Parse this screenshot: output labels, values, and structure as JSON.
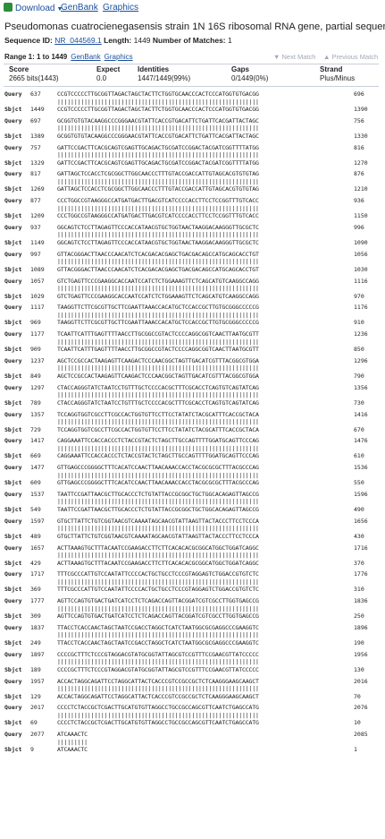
{
  "toolbar": {
    "download_label": "Download",
    "genbank_label": "GenBank",
    "graphics_label": "Graphics"
  },
  "title": "Pseudomonas cuatrocienegasensis strain 1N 16S ribosomal RNA gene, partial sequence",
  "meta": {
    "sequence_id_label": "Sequence ID:",
    "sequence_id": "NR_044569.1",
    "length_label": "Length:",
    "length": "1449",
    "matches_label": "Number of Matches:",
    "matches": "1"
  },
  "range": {
    "label": "Range 1: 1 to 1449",
    "genbank_label": "GenBank",
    "graphics_label": "Graphics",
    "next_match": "▼ Next Match",
    "prev_match": "▲ Previous Match"
  },
  "stats": {
    "score_h": "Score",
    "score_v": "2665 bits(1443)",
    "expect_h": "Expect",
    "expect_v": "0.0",
    "identities_h": "Identities",
    "identities_v": "1447/1449(99%)",
    "gaps_h": "Gaps",
    "gaps_v": "0/1449(0%)",
    "strand_h": "Strand",
    "strand_v": "Plus/Minus"
  },
  "alignment": [
    {
      "qs": "637",
      "q": "CCGTCCCCCTTGCGGTTAGACTAGCTACTTCTGGTGCAACCCACTCCCATGGTGTGACGG",
      "qe": "696",
      "ss": "1449",
      "s": "CCGTCCCCCTTGCGGTTAGACTAGCTACTTCTGGTGCAACCCACTCCCATGGTGTGACGG",
      "se": "1390"
    },
    {
      "qs": "697",
      "q": "GCGGTGTGTACAAGGCCCGGGAACGTATTCACCGTGACATTCTGATTCACGATTACTAGC",
      "qe": "756",
      "ss": "1389",
      "s": "GCGGTGTGTACAAGGCCCGGGAACGTATTCACCGTGACATTCTGATTCACGATTACTAGC",
      "se": "1330"
    },
    {
      "qs": "757",
      "q": "GATTCCGACTTCACGCAGTCGAGTTGCAGACTGCGATCCGGACTACGATCGGTTTTATGG",
      "qe": "816",
      "ss": "1329",
      "s": "GATTCCGACTTCACGCAGTCGAGTTGCAGACTGCGATCCGGACTACGATCGGTTTTATGG",
      "se": "1270"
    },
    {
      "qs": "817",
      "q": "GATTAGCTCCACCTCGCGGCTTGGCAACCCTTTGTACCGACCATTGTAGCACGTGTGTAG",
      "qe": "876",
      "ss": "1269",
      "s": "GATTAGCTCCACCTCGCGGCTTGGCAACCCTTTGTACCGACCATTGTAGCACGTGTGTAG",
      "se": "1210"
    },
    {
      "qs": "877",
      "q": "CCCTGGCCGTAAGGGCCATGATGACTTGACGTCATCCCCACCTTCCTCCGGTTTGTCACC",
      "qe": "936",
      "ss": "1209",
      "s": "CCCTGGCCGTAAGGGCCATGATGACTTGACGTCATCCCCACCTTCCTCCGGTTTGTCACC",
      "se": "1150"
    },
    {
      "qs": "937",
      "q": "GGCAGTCTCCTTAGAGTTCCCACCATAACGTGCTGGTAACTAAGGACAAGGGTTGCGCTC",
      "qe": "996",
      "ss": "1149",
      "s": "GGCAGTCTCCTTAGAGTTCCCACCATAACGTGCTGGTAACTAAGGACAAGGGTTGCGCTC",
      "se": "1090"
    },
    {
      "qs": "997",
      "q": "GTTACGGGACTTAACCCAACATCTCACGACACGAGCTGACGACAGCCATGCAGCACCTGT",
      "qe": "1056",
      "ss": "1089",
      "s": "GTTACGGGACTTAACCCAACATCTCACGACACGAGCTGACGACAGCCATGCAGCACCTGT",
      "se": "1030"
    },
    {
      "qs": "1057",
      "q": "GTCTGAGTTCCCGAAGGCACCAATCCATCTCTGGAAAGTTCTCAGCATGTCAAGGCCAGG",
      "qe": "1116",
      "ss": "1029",
      "s": "GTCTGAGTTCCCGAAGGCACCAATCCATCTCTGGAAAGTTCTCAGCATGTCAAGGCCAGG",
      "se": "970"
    },
    {
      "qs": "1117",
      "q": "TAAGGTTCTTCGCGTTGCTTCGAATTAAACCACATGCTCCACCGCTTGTGCGGGCCCCCG",
      "qe": "1176",
      "ss": "969",
      "s": "TAAGGTTCTTCGCGTTGCTTCGAATTAAACCACATGCTCCACCGCTTGTGCGGGCCCCCG",
      "se": "910"
    },
    {
      "qs": "1177",
      "q": "TCAATTCATTTGAGTTTTAACCTTGCGGCCGTACTCCCCAGGCGGTCAACTTAATGCGTT",
      "qe": "1236",
      "ss": "909",
      "s": "TCAATTCATTTGAGTTTTAACCTTGCGGCCGTACTCCCCAGGCGGTCAACTTAATGCGTT",
      "se": "850"
    },
    {
      "qs": "1237",
      "q": "AGCTCCGCCACTAAGAGTTCAAGACTCCCAACGGCTAGTTGACATCGTTTACGGCGTGGA",
      "qe": "1296",
      "ss": "849",
      "s": "AGCTCCGCCACTAAGAGTTCAAGACTCCCAACGGCTAGTTGACATCGTTTACGGCGTGGA",
      "se": "790"
    },
    {
      "qs": "1297",
      "q": "CTACCAGGGTATCTAATCCTGTTTGCTCCCCACGCTTTCGCACCTCAGTGTCAGTATCAG",
      "qe": "1356",
      "ss": "789",
      "s": "CTACCAGGGTATCTAATCCTGTTTGCTCCCCACGCTTTCGCACCTCAGTGTCAGTATCAG",
      "se": "730"
    },
    {
      "qs": "1357",
      "q": "TCCAGGTGGTCGCCTTCGCCACTGGTGTTCCTTCCTATATCTACGCATTTCACCGCTACA",
      "qe": "1416",
      "ss": "729",
      "s": "TCCAGGTGGTCGCCTTCGCCACTGGTGTTCCTTCCTATATCTACGCATTTCACCGCTACA",
      "se": "670"
    },
    {
      "qs": "1417",
      "q": "CAGGAAATTCCACCACCCTCTACCGTACTCTAGCTTGCCAGTTTTGGATGCAGTTCCCAG",
      "qe": "1476",
      "ss": "669",
      "s": "CAGGAAATTCCACCACCCTCTACCGTACTCTAGCTTGCCAGTTTTGGATGCAGTTCCCAG",
      "se": "610"
    },
    {
      "qs": "1477",
      "q": "GTTGAGCCCGGGGCTTTCACATCCAACTTAACAAACCACCTACGCGCGCTTTACGCCCAG",
      "qe": "1536",
      "ss": "609",
      "s": "GTTGAGCCCGGGGCTTTCACATCCAACTTAACAAACCACCTACGCGCGCTTTACGCCCAG",
      "se": "550"
    },
    {
      "qs": "1537",
      "q": "TAATTCCGATTAACGCTTGCACCCTCTGTATTACCGCGGCTGCTGGCACAGAGTTAGCCG",
      "qe": "1596",
      "ss": "549",
      "s": "TAATTCCGATTAACGCTTGCACCCTCTGTATTACCGCGGCTGCTGGCACAGAGTTAGCCG",
      "se": "490"
    },
    {
      "qs": "1597",
      "q": "GTGCTTATTCTGTCGGTAACGTCAAAATAGCAACGTATTAAGTTACTACCCTTCCTCCCA",
      "qe": "1656",
      "ss": "489",
      "s": "GTGCTTATTCTGTCGGTAACGTCAAAATAGCAACGTATTAAGTTACTACCCTTCCTCCCA",
      "se": "430"
    },
    {
      "qs": "1657",
      "q": "ACTTAAAGTGCTTTACAATCCGAAGACCTTCTTCACACACGCGGCATGGCTGGATCAGGC",
      "qe": "1716",
      "ss": "429",
      "s": "ACTTAAAGTGCTTTACAATCCGAAGACCTTCTTCACACACGCGGCATGGCTGGATCAGGC",
      "se": "370"
    },
    {
      "qs": "1717",
      "q": "TTTCGCCCATTGTCCAATATTCCCCACTGCTGCCTCCCGTAGGAGTCTGGACCGTGTCTC",
      "qe": "1776",
      "ss": "369",
      "s": "TTTCGCCCATTGTCCAATATTCCCCACTGCTGCCTCCCGTAGGAGTCTGGACCGTGTCTC",
      "se": "310"
    },
    {
      "qs": "1777",
      "q": "AGTTCCAGTGTGACTGATCATCCTCTCAGACCAGTTACGGATCGTCGCCTTGGTGAGCCG",
      "qe": "1836",
      "ss": "309",
      "s": "AGTTCCAGTGTGACTGATCATCCTCTCAGACCAGTTACGGATCGTCGCCTTGGTGAGCCG",
      "se": "250"
    },
    {
      "qs": "1837",
      "q": "TTACCTCACCAACTAGCTAATCCGACCTAGGCTCATCTAATGGCGCGAGGCCCGAAGGTC",
      "qe": "1896",
      "ss": "249",
      "s": "TTACCTCACCAACTAGCTAATCCGACCTAGGCTCATCTAATGGCGCGAGGCCCGAAGGTC",
      "se": "190"
    },
    {
      "qs": "1897",
      "q": "CCCCGCTTTCTCCCGTAGGACGTATGCGGTATTAGCGTCCGTTTCCGAACGTTATCCCCC",
      "qe": "1956",
      "ss": "189",
      "s": "CCCCGCTTTCTCCCGTAGGACGTATGCGGTATTAGCGTCCGTTTCCGAACGTTATCCCCC",
      "se": "130"
    },
    {
      "qs": "1957",
      "q": "ACCACTAGGCAGATTCCTAGGCATTACTCACCCGTCCGCCGCTCTCAAGGGAAGCAAGCT",
      "qe": "2016",
      "ss": "129",
      "s": "ACCACTAGGCAGATTCCTAGGCATTACTCACCCGTCCGCCGCTCTCAAGGGAAGCAAGCT",
      "se": "70"
    },
    {
      "qs": "2017",
      "q": "CCCCTCTACCGCTCGACTTGCATGTGTTAGGCCTGCCGCCAGCGTTCAATCTGAGCCATG",
      "qe": "2076",
      "ss": "69",
      "s": "CCCCTCTACCGCTCGACTTGCATGTGTTAGGCCTGCCGCCAGCGTTCAATCTGAGCCATG",
      "se": "10"
    },
    {
      "qs": "2077",
      "q": "ATCAAACTC",
      "qe": "2085",
      "ss": "9",
      "s": "ATCAAACTC",
      "se": "1"
    }
  ]
}
